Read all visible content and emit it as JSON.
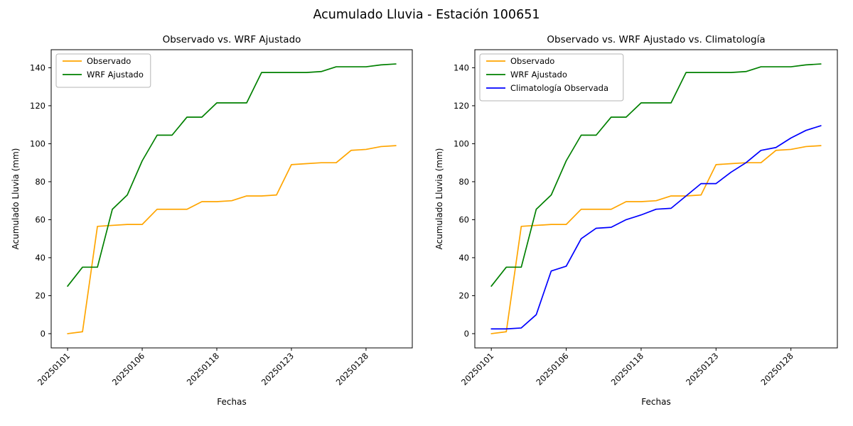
{
  "figure": {
    "title": "Acumulado Lluvia - Estación 100651",
    "background": "#ffffff",
    "axis_color": "#000000"
  },
  "chart_data": [
    {
      "type": "line",
      "title": "Observado vs. WRF Ajustado",
      "xlabel": "Fechas",
      "ylabel": "Acumulado Lluvia (mm)",
      "x_tick_positions": [
        0,
        5,
        10,
        15,
        20
      ],
      "x_tick_labels": [
        "20250101",
        "20250106",
        "20250118",
        "20250123",
        "20250128"
      ],
      "y_ticks": [
        0,
        20,
        40,
        60,
        80,
        100,
        120,
        140
      ],
      "xlim": [
        -1.1,
        23.1
      ],
      "ylim": [
        -7.5,
        149.5
      ],
      "grid": false,
      "legend_position": "upper left",
      "series": [
        {
          "name": "Observado",
          "color": "#ffa500",
          "values": [
            0,
            1,
            56.5,
            57,
            57.5,
            57.5,
            65.5,
            65.5,
            65.5,
            69.5,
            69.5,
            70,
            72.5,
            72.5,
            73,
            89,
            89.5,
            90,
            90,
            96.5,
            97,
            98.5,
            99
          ]
        },
        {
          "name": "WRF Ajustado",
          "color": "#008000",
          "values": [
            25,
            35,
            35,
            65.5,
            73,
            91,
            104.5,
            104.5,
            114,
            114,
            121.5,
            121.5,
            121.5,
            137.5,
            137.5,
            137.5,
            137.5,
            138,
            140.5,
            140.5,
            140.5,
            141.5,
            142
          ]
        }
      ]
    },
    {
      "type": "line",
      "title": "Observado vs. WRF Ajustado vs. Climatología",
      "xlabel": "Fechas",
      "ylabel": "Acumulado Lluvia (mm)",
      "x_tick_positions": [
        0,
        5,
        10,
        15,
        20
      ],
      "x_tick_labels": [
        "20250101",
        "20250106",
        "20250118",
        "20250123",
        "20250128"
      ],
      "y_ticks": [
        0,
        20,
        40,
        60,
        80,
        100,
        120,
        140
      ],
      "xlim": [
        -1.1,
        23.1
      ],
      "ylim": [
        -7.5,
        149.5
      ],
      "grid": false,
      "legend_position": "upper left",
      "series": [
        {
          "name": "Observado",
          "color": "#ffa500",
          "values": [
            0,
            1,
            56.5,
            57,
            57.5,
            57.5,
            65.5,
            65.5,
            65.5,
            69.5,
            69.5,
            70,
            72.5,
            72.5,
            73,
            89,
            89.5,
            90,
            90,
            96.5,
            97,
            98.5,
            99
          ]
        },
        {
          "name": "WRF Ajustado",
          "color": "#008000",
          "values": [
            25,
            35,
            35,
            65.5,
            73,
            91,
            104.5,
            104.5,
            114,
            114,
            121.5,
            121.5,
            121.5,
            137.5,
            137.5,
            137.5,
            137.5,
            138,
            140.5,
            140.5,
            140.5,
            141.5,
            142
          ]
        },
        {
          "name": "Climatología Observada",
          "color": "#0000ff",
          "values": [
            2.5,
            2.5,
            3,
            10,
            33,
            35.5,
            50,
            55.5,
            56,
            60,
            62.5,
            65.5,
            66,
            72.5,
            79,
            79,
            85,
            90,
            96.5,
            98,
            103,
            107,
            109.5
          ]
        }
      ]
    }
  ]
}
